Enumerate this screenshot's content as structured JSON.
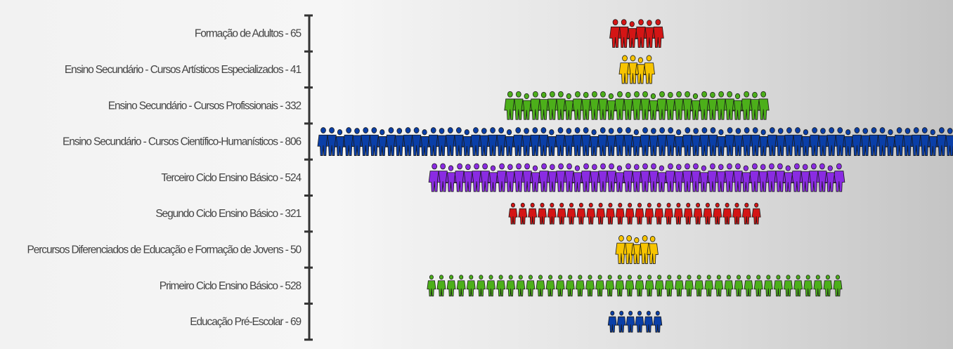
{
  "chart_data": {
    "type": "bar",
    "style": "pictograph",
    "orientation": "horizontal",
    "categories": [
      "Formação de Adultos - 65",
      "Ensino Secundário - Cursos Artísticos Especializados - 41",
      "Ensino Secundário - Cursos Profissionais - 332",
      "Ensino Secundário - Cursos Científico-Humanísticos - 806",
      "Terceiro Ciclo Ensino Básico - 524",
      "Segundo Ciclo Ensino Básico - 321",
      "Percursos Diferenciados de Educação e Formação de Jovens - 50",
      "Primeiro Ciclo Ensino Básico - 528",
      "Educação Pré-Escolar - 69"
    ],
    "values": [
      65,
      41,
      332,
      806,
      524,
      321,
      50,
      528,
      69
    ],
    "colors": [
      "#d41515",
      "#f7c400",
      "#4caf1a",
      "#0a3fa8",
      "#8a2be2",
      "#d41515",
      "#f7c400",
      "#4caf1a",
      "#0a3fa8"
    ],
    "icons": [
      "people-group-icon",
      "people-group-icon",
      "people-group-icon",
      "people-group-icon",
      "people-group-icon",
      "person-icon",
      "people-group-icon",
      "person-icon",
      "person-icon"
    ],
    "title": "",
    "xlabel": "",
    "ylabel": "",
    "grid": false,
    "legend": "none"
  }
}
